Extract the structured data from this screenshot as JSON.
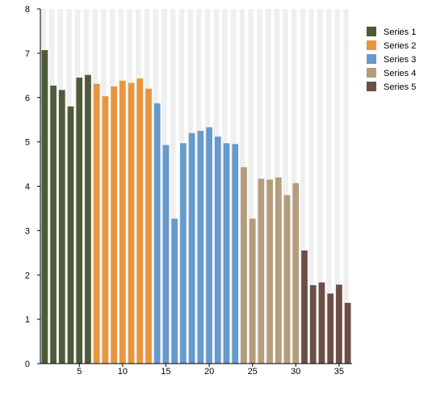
{
  "chart_data": {
    "type": "bar",
    "title": "",
    "xlabel": "",
    "ylabel": "",
    "xlim": [
      0.5,
      36.5
    ],
    "ylim": [
      0,
      8
    ],
    "x_ticks": [
      5,
      10,
      15,
      20,
      25,
      30,
      35
    ],
    "y_ticks": [
      0,
      1,
      2,
      3,
      4,
      5,
      6,
      7,
      8
    ],
    "grid": "alternating vertical stripes",
    "legend_position": "top-right",
    "series": [
      {
        "name": "Series 1",
        "color": "#4f5a3a",
        "x": [
          1,
          2,
          3,
          4,
          5,
          6
        ],
        "values": [
          7.07,
          6.27,
          6.17,
          5.8,
          6.45,
          6.51
        ]
      },
      {
        "name": "Series 2",
        "color": "#e8953f",
        "x": [
          7,
          8,
          9,
          10,
          11,
          12,
          13
        ],
        "values": [
          6.31,
          6.03,
          6.25,
          6.38,
          6.33,
          6.43,
          6.2
        ]
      },
      {
        "name": "Series 3",
        "color": "#6699cc",
        "x": [
          14,
          15,
          16,
          17,
          18,
          19,
          20,
          21,
          22,
          23
        ],
        "values": [
          5.87,
          4.93,
          3.27,
          4.97,
          5.2,
          5.25,
          5.33,
          5.12,
          4.97,
          4.95
        ]
      },
      {
        "name": "Series 4",
        "color": "#b49d7c",
        "x": [
          24,
          25,
          26,
          27,
          28,
          29,
          30
        ],
        "values": [
          4.43,
          3.27,
          4.17,
          4.15,
          4.2,
          3.8,
          4.07
        ]
      },
      {
        "name": "Series 5",
        "color": "#6b4e45",
        "x": [
          31,
          32,
          33,
          34,
          35,
          36
        ],
        "values": [
          2.55,
          1.77,
          1.83,
          1.58,
          1.78,
          1.37
        ]
      }
    ]
  }
}
